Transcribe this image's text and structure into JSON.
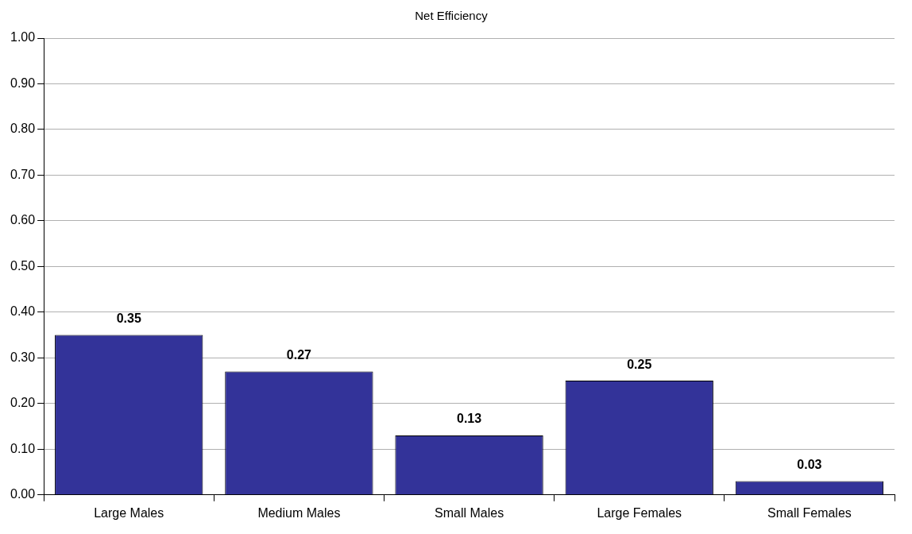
{
  "chart_data": {
    "type": "bar",
    "title": "Net Efficiency",
    "categories": [
      "Large Males",
      "Medium Males",
      "Small Males",
      "Large Females",
      "Small Females"
    ],
    "values": [
      0.35,
      0.27,
      0.13,
      0.25,
      0.03
    ],
    "color": "#333399",
    "ylim": [
      0,
      1
    ],
    "yticks": [
      {
        "value": 0,
        "label": "0.00"
      },
      {
        "value": 0.1,
        "label": "0.10"
      },
      {
        "value": 0.2,
        "label": "0.20"
      },
      {
        "value": 0.3,
        "label": "0.30"
      },
      {
        "value": 0.4,
        "label": "0.40"
      },
      {
        "value": 0.5,
        "label": "0.50"
      },
      {
        "value": 0.6,
        "label": "0.60"
      },
      {
        "value": 0.7,
        "label": "0.70"
      },
      {
        "value": 0.8,
        "label": "0.80"
      },
      {
        "value": 0.9,
        "label": "0.90"
      },
      {
        "value": 1,
        "label": "1.00"
      }
    ],
    "grid": "y",
    "data_labels": true
  }
}
